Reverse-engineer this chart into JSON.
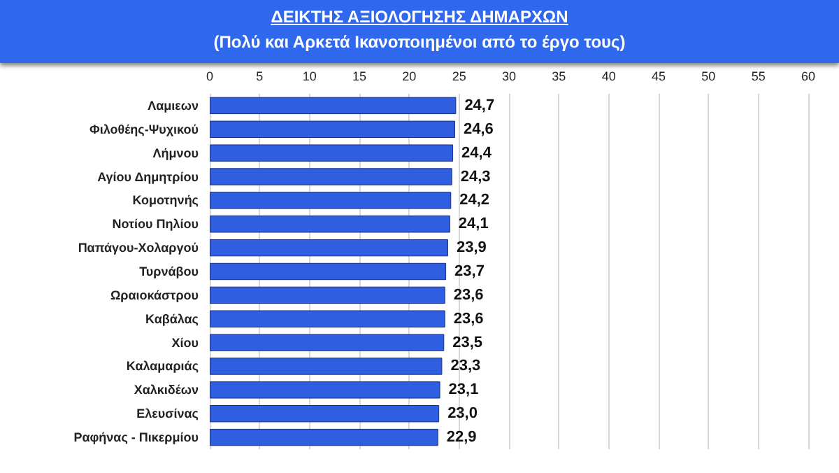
{
  "chart_data": {
    "type": "bar",
    "orientation": "horizontal",
    "title": "ΔΕΙΚΤΗΣ ΑΞΙΟΛΟΓΗΣΗΣ ΔΗΜΑΡΧΩΝ",
    "subtitle": "(Πολύ και Αρκετά Ικανοποιημένοι από το έργο τους)",
    "categories": [
      "Λαμιεων",
      "Φιλοθέης-Ψυχικού",
      "Λήμνου",
      "Αγίου Δημητρίου",
      "Κομοτηνής",
      "Νοτίου Πηλίου",
      "Παπάγου-Χολαργού",
      "Τυρνάβου",
      "Ωραιοκάστρου",
      "Καβάλας",
      "Χίου",
      "Καλαμαριάς",
      "Χαλκιδέων",
      "Ελευσίνας",
      "Ραφήνας - Πικερμίου"
    ],
    "values": [
      24.7,
      24.6,
      24.4,
      24.3,
      24.2,
      24.1,
      23.9,
      23.7,
      23.6,
      23.6,
      23.5,
      23.3,
      23.1,
      23.0,
      22.9
    ],
    "value_labels": [
      "24,7",
      "24,6",
      "24,4",
      "24,3",
      "24,2",
      "24,1",
      "23,9",
      "23,7",
      "23,6",
      "23,6",
      "23,5",
      "23,3",
      "23,1",
      "23,0",
      "22,9"
    ],
    "color": "#2f5ee0",
    "xlim": [
      0,
      60
    ],
    "xticks": [
      0,
      5,
      10,
      15,
      20,
      25,
      30,
      35,
      40,
      45,
      50,
      55,
      60
    ],
    "grid": "x"
  }
}
